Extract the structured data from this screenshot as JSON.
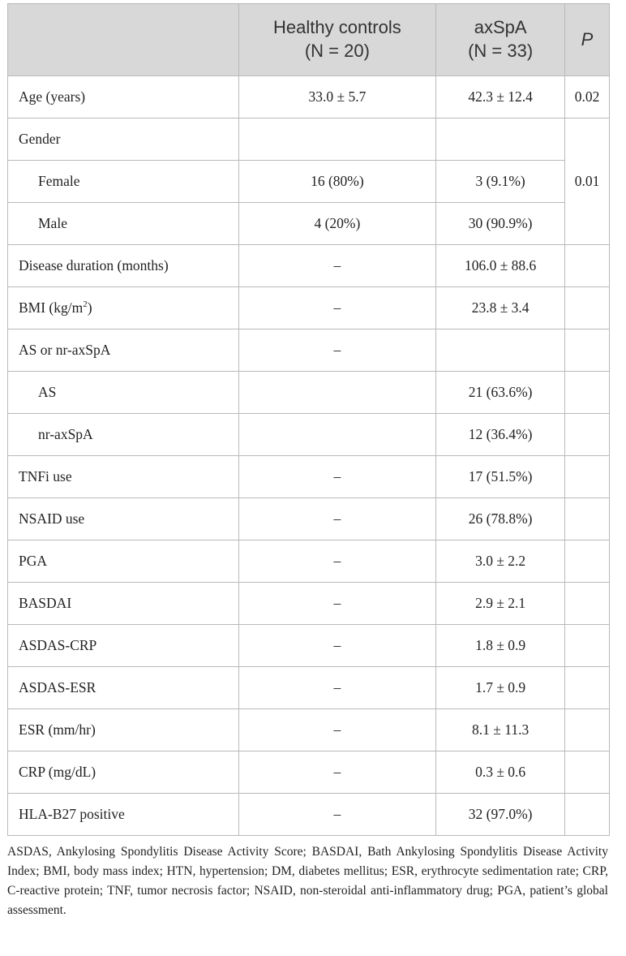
{
  "table": {
    "headers": {
      "col1": "",
      "col2_line1": "Healthy controls",
      "col2_line2": "(N = 20)",
      "col3_line1": "axSpA",
      "col3_line2": "(N = 33)",
      "col4": "P"
    },
    "rows": {
      "age": {
        "label": "Age (years)",
        "hc": "33.0 ± 5.7",
        "ax": "42.3 ± 12.4",
        "p": "0.02"
      },
      "gender": {
        "label": "Gender",
        "hc": "",
        "ax": "",
        "p": "0.01"
      },
      "female": {
        "label": "Female",
        "hc": "16 (80%)",
        "ax": "3 (9.1%)"
      },
      "male": {
        "label": "Male",
        "hc": "4 (20%)",
        "ax": "30 (90.9%)"
      },
      "duration": {
        "label": "Disease duration (months)",
        "hc": "–",
        "ax": "106.0 ± 88.6",
        "p": ""
      },
      "bmi": {
        "label_main": "BMI (kg/m",
        "label_sup": "2",
        "label_end": ")",
        "hc": "–",
        "ax": "23.8 ± 3.4",
        "p": ""
      },
      "as_or_nr": {
        "label": "AS or nr-axSpA",
        "hc": "–",
        "ax": "",
        "p": ""
      },
      "as": {
        "label": "AS",
        "hc": "",
        "ax": "21 (63.6%)",
        "p": ""
      },
      "nr": {
        "label": "nr-axSpA",
        "hc": "",
        "ax": "12 (36.4%)",
        "p": ""
      },
      "tnfi": {
        "label": "TNFi use",
        "hc": "–",
        "ax": "17 (51.5%)",
        "p": ""
      },
      "nsaid": {
        "label": "NSAID use",
        "hc": "–",
        "ax": "26 (78.8%)",
        "p": ""
      },
      "pga": {
        "label": "PGA",
        "hc": "–",
        "ax": "3.0 ± 2.2",
        "p": ""
      },
      "basdai": {
        "label": "BASDAI",
        "hc": "–",
        "ax": "2.9 ± 2.1",
        "p": ""
      },
      "asdas_crp": {
        "label": "ASDAS-CRP",
        "hc": "–",
        "ax": "1.8 ± 0.9",
        "p": ""
      },
      "asdas_esr": {
        "label": "ASDAS-ESR",
        "hc": "–",
        "ax": "1.7 ± 0.9",
        "p": ""
      },
      "esr": {
        "label": "ESR (mm/hr)",
        "hc": "–",
        "ax": "8.1 ± 11.3",
        "p": ""
      },
      "crp": {
        "label": "CRP (mg/dL)",
        "hc": "–",
        "ax": "0.3 ± 0.6",
        "p": ""
      },
      "hla": {
        "label": "HLA-B27 positive",
        "hc": "–",
        "ax": "32 (97.0%)",
        "p": ""
      }
    }
  },
  "footnote": "ASDAS, Ankylosing Spondylitis Disease Activity Score; BASDAI, Bath Ankylosing Spondylitis Disease Activity Index; BMI, body mass index; HTN, hypertension; DM, diabetes mellitus; ESR, erythrocyte sedimentation rate; CRP, C-reactive protein; TNF, tumor necrosis factor; NSAID, non-steroidal anti-inflammatory drug; PGA, patient’s global assessment.",
  "colors": {
    "header_bg": "#d8d8d8",
    "border": "#b9b9b9",
    "text": "#222222"
  }
}
